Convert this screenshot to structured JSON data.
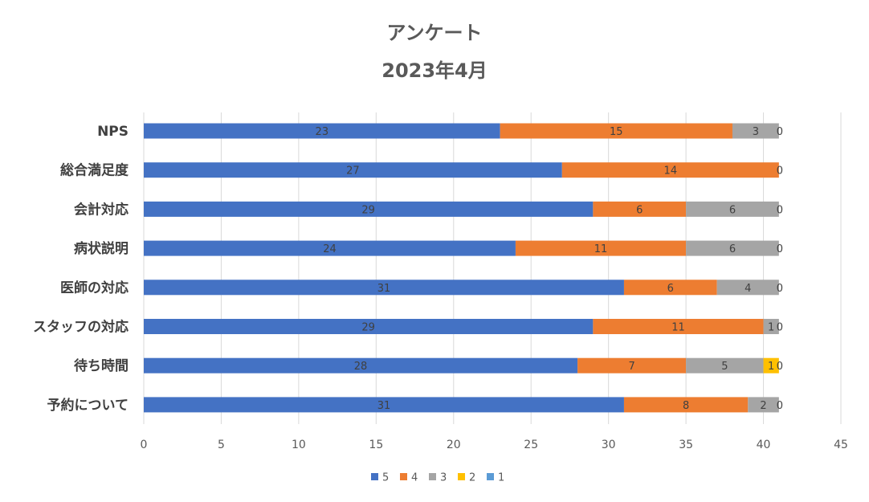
{
  "chart_data": {
    "type": "bar",
    "orientation": "horizontal",
    "stacked": true,
    "title": "アンケート",
    "subtitle": "2023年4月",
    "categories": [
      "NPS",
      "総合満足度",
      "会計対応",
      "病状説明",
      "医師の対応",
      "スタッフの対応",
      "待ち時間",
      "予約について"
    ],
    "series": [
      {
        "name": "5",
        "color": "#4472c4",
        "values": [
          23,
          27,
          29,
          24,
          31,
          29,
          28,
          31
        ]
      },
      {
        "name": "4",
        "color": "#ed7d31",
        "values": [
          15,
          14,
          6,
          11,
          6,
          11,
          7,
          8
        ]
      },
      {
        "name": "3",
        "color": "#a5a5a5",
        "values": [
          3,
          0,
          6,
          6,
          4,
          1,
          5,
          2
        ]
      },
      {
        "name": "2",
        "color": "#ffc000",
        "values": [
          0,
          0,
          0,
          0,
          0,
          0,
          1,
          0
        ]
      },
      {
        "name": "1",
        "color": "#5b9bd5",
        "values": [
          0,
          0,
          0,
          0,
          0,
          0,
          0,
          0
        ]
      }
    ],
    "data_labels": [
      [
        "23",
        "15",
        "3",
        "",
        "0"
      ],
      [
        "27",
        "14",
        "",
        "",
        "0"
      ],
      [
        "29",
        "6",
        "6",
        "",
        "0"
      ],
      [
        "24",
        "11",
        "6",
        "",
        "0"
      ],
      [
        "31",
        "6",
        "4",
        "",
        "0"
      ],
      [
        "29",
        "11",
        "1",
        "",
        "0"
      ],
      [
        "28",
        "7",
        "5",
        "1",
        "0"
      ],
      [
        "31",
        "8",
        "2",
        "",
        "0"
      ]
    ],
    "xlim": [
      0,
      45
    ],
    "xticks": [
      0,
      5,
      10,
      15,
      20,
      25,
      30,
      35,
      40,
      45
    ],
    "xlabel": "",
    "ylabel": "",
    "grid": true,
    "legend_position": "bottom"
  }
}
